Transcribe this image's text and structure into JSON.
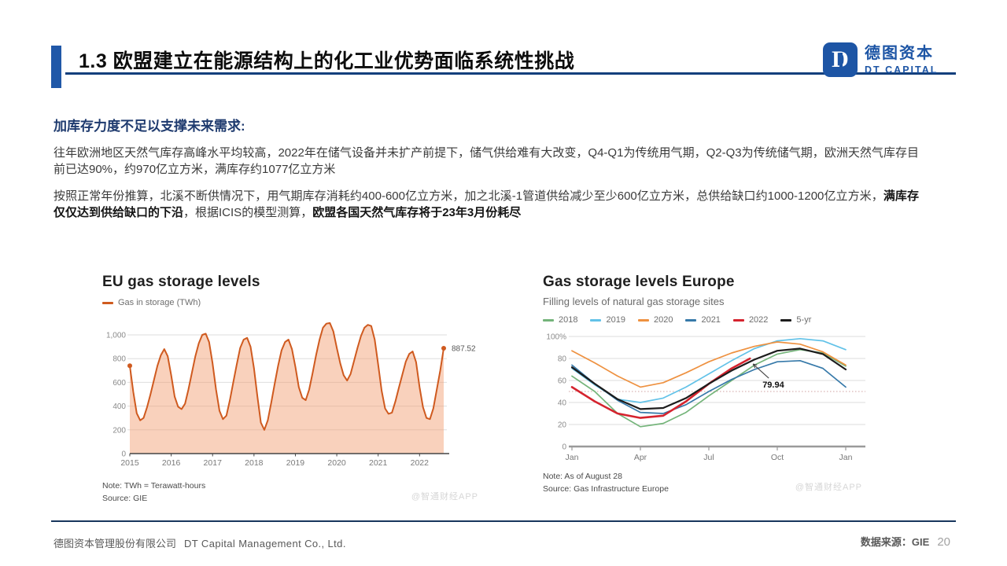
{
  "header": {
    "title": "1.3 欧盟建立在能源结构上的化工业优势面临系统性挑战",
    "logo": {
      "cn": "德图资本",
      "en": "DT CAPITAL",
      "mark_letter": "D"
    }
  },
  "theme": {
    "brand_blue": "#1d55a5",
    "rule_navy": "#17365d",
    "accent_blue": "#2058a8"
  },
  "content": {
    "heading": "加库存力度不足以支撑未来需求:",
    "p1": "往年欧洲地区天然气库存高峰水平均较高，2022年在储气设备并未扩产前提下，储气供给难有大改变，Q4-Q1为传统用气期，Q2-Q3为传统储气期，欧洲天然气库存目前已达90%，约970亿立方米，满库存约1077亿立方米",
    "p2": {
      "seg1": "按照正常年份推算，北溪不断供情况下，用气期库存消耗约400-600亿立方米，加之北溪-1管道供给减少至少600亿立方米，总供给缺口约1000-1200亿立方米，",
      "seg2_bold": "满库存仅仅达到供给缺口的下沿",
      "seg3": "，根据ICIS的模型测算，",
      "seg4_bold": "欧盟各国天然气库存将于23年3月份耗尽"
    }
  },
  "footer": {
    "company_cn": "德图资本管理股份有限公司",
    "company_en": "DT Capital Management Co., Ltd.",
    "source_label": "数据来源：GIE",
    "page": "20"
  },
  "chart_data": [
    {
      "type": "area",
      "title": "EU gas storage levels",
      "legend": [
        {
          "label": "Gas in storage (TWh)",
          "color": "#cf5a1f"
        }
      ],
      "line_color": "#cf5a1f",
      "fill_color": "rgba(242,153,106,0.45)",
      "ylim": [
        0,
        1160
      ],
      "yticks": [
        "0",
        "200",
        "400",
        "600",
        "800",
        "1,000"
      ],
      "ytick_values": [
        0,
        200,
        400,
        600,
        800,
        1000
      ],
      "x_years": [
        "2015",
        "2016",
        "2017",
        "2018",
        "2019",
        "2020",
        "2021",
        "2022"
      ],
      "points_per_year": 12,
      "values": [
        740,
        520,
        340,
        280,
        300,
        390,
        500,
        620,
        740,
        830,
        880,
        820,
        660,
        480,
        395,
        375,
        420,
        540,
        680,
        820,
        930,
        1000,
        1010,
        940,
        760,
        540,
        360,
        290,
        320,
        450,
        600,
        750,
        890,
        960,
        975,
        900,
        720,
        480,
        260,
        200,
        280,
        430,
        590,
        740,
        870,
        940,
        960,
        880,
        730,
        560,
        470,
        450,
        540,
        680,
        830,
        960,
        1060,
        1095,
        1100,
        1030,
        890,
        760,
        660,
        615,
        670,
        780,
        890,
        990,
        1060,
        1085,
        1075,
        960,
        750,
        530,
        380,
        335,
        345,
        440,
        555,
        665,
        775,
        840,
        860,
        770,
        560,
        390,
        300,
        290,
        380,
        540,
        700,
        887.52
      ],
      "end_label": "887.52",
      "note": "Note: TWh = Terawatt-hours",
      "source": "Source: GIE",
      "watermark": "@智通财经APP"
    },
    {
      "type": "line",
      "title": "Gas storage levels Europe",
      "subtitle": "Filling levels of natural gas storage sites",
      "ylim": [
        0,
        104
      ],
      "yticks": [
        "0",
        "20",
        "40",
        "60",
        "80",
        "100%"
      ],
      "ytick_values": [
        0,
        20,
        40,
        60,
        80,
        100
      ],
      "reference_line": 50,
      "xticks": [
        "Jan",
        "Apr",
        "Jul",
        "Oct",
        "Jan"
      ],
      "xtick_months": [
        0,
        3,
        6,
        9,
        12
      ],
      "series": [
        {
          "name": "2018",
          "color": "#74b47a",
          "width": 1.7,
          "values": [
            64,
            50,
            30,
            18,
            21,
            31,
            46,
            60,
            74,
            84,
            88,
            85,
            73
          ]
        },
        {
          "name": "2019",
          "color": "#62c2e8",
          "width": 1.7,
          "values": [
            71,
            56,
            43,
            40,
            44,
            54,
            66,
            78,
            89,
            96,
            98,
            96,
            88
          ]
        },
        {
          "name": "2020",
          "color": "#ee9140",
          "width": 1.7,
          "values": [
            87,
            76,
            64,
            54,
            58,
            67,
            77,
            85,
            91,
            95,
            93,
            86,
            74
          ]
        },
        {
          "name": "2021",
          "color": "#3679a9",
          "width": 1.7,
          "values": [
            74,
            57,
            42,
            31,
            30,
            38,
            50,
            61,
            70,
            77,
            78,
            71,
            54
          ]
        },
        {
          "name": "2022",
          "color": "#d5232e",
          "width": 2.6,
          "x": [
            0,
            1,
            2,
            3,
            4,
            5,
            6,
            7,
            7.8
          ],
          "values": [
            54,
            41,
            30,
            26,
            28,
            41,
            57,
            71,
            79.94
          ]
        },
        {
          "name": "5-yr",
          "color": "#1c1c1c",
          "width": 2.2,
          "values": [
            72,
            57,
            43,
            34,
            35,
            44,
            57,
            69,
            79,
            87,
            89,
            84,
            70
          ]
        }
      ],
      "annotation": {
        "text": "79.94",
        "target_month": 7.8,
        "target_value": 79.94
      },
      "note": "Note: As of August 28",
      "source": "Source: Gas Infrastructure Europe",
      "watermark": "@智通财经APP"
    }
  ]
}
